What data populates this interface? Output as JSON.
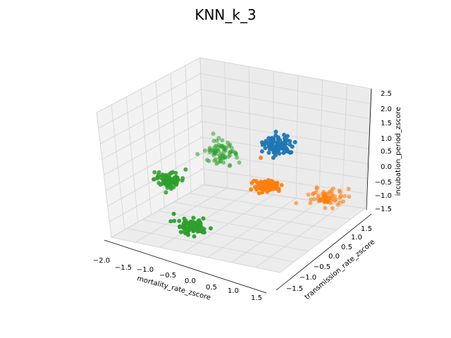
{
  "chart_data": {
    "type": "scatter",
    "projection": "3d",
    "title": "KNN_k_3",
    "xlabel": "mortality_rate_zscore",
    "ylabel": "transmission_rate_zscore",
    "zlabel": "incubation_period_zscore",
    "x_ticks": [
      "−2.0",
      "−1.5",
      "−1.0",
      "−0.5",
      "0.0",
      "0.5",
      "1.0",
      "1.5"
    ],
    "y_ticks": [
      "−1.5",
      "−1.0",
      "−0.5",
      "0.0",
      "0.5",
      "1.0",
      "1.5"
    ],
    "z_ticks": [
      "−1.5",
      "−1.0",
      "−0.5",
      "0.0",
      "0.5",
      "1.0",
      "1.5",
      "2.0",
      "2.5"
    ],
    "xlim": [
      -2.0,
      1.7
    ],
    "ylim": [
      -1.7,
      1.8
    ],
    "zlim": [
      -1.6,
      2.6
    ],
    "grid": true,
    "clusters": [
      {
        "class": 0,
        "color": "#1f77b4",
        "center": [
          1.5,
          1.5,
          1.5
        ],
        "spread": 0.15,
        "count": 80
      },
      {
        "class": 1,
        "color": "#ff7f0e",
        "center": [
          1.3,
          0.0,
          -0.5
        ],
        "spread": 0.13,
        "count": 80
      },
      {
        "class": 1,
        "color": "#ff7f0e",
        "center": [
          1.6,
          -1.3,
          -0.7
        ],
        "spread": 0.17,
        "count": 70
      },
      {
        "class": 1,
        "color": "#ff7f0e",
        "center": [
          0.9,
          1.2,
          0.9
        ],
        "spread": 0.0,
        "count": 1
      },
      {
        "class": 2,
        "color": "#2ca02c",
        "center": [
          -0.3,
          1.6,
          1.3
        ],
        "spread": 0.17,
        "count": 70
      },
      {
        "class": 2,
        "color": "#2ca02c",
        "center": [
          -1.5,
          0.3,
          0.6
        ],
        "spread": 0.15,
        "count": 80
      },
      {
        "class": 2,
        "color": "#2ca02c",
        "center": [
          -0.3,
          -1.3,
          0.4
        ],
        "spread": 0.15,
        "count": 80
      }
    ]
  }
}
